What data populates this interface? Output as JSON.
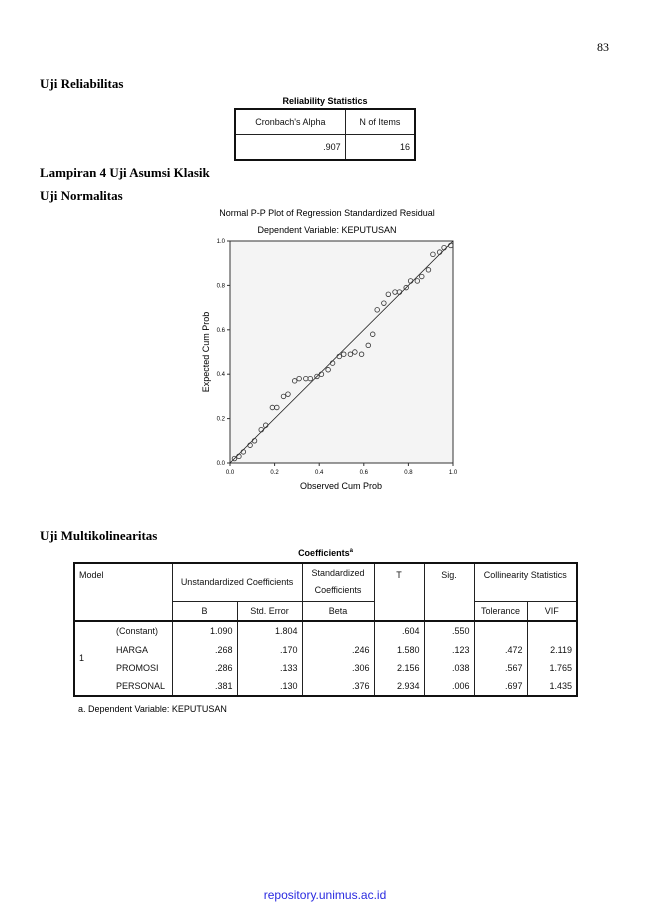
{
  "page_number": "83",
  "reliability": {
    "heading": "Uji Reliabilitas",
    "title": "Reliability Statistics",
    "headers": [
      "Cronbach's Alpha",
      "N of Items"
    ],
    "values": [
      ".907",
      "16"
    ]
  },
  "appendix_heading": "Lampiran 4 Uji Asumsi Klasik",
  "normality": {
    "heading": "Uji Normalitas",
    "chart_data": {
      "type": "scatter",
      "title": "Normal P-P Plot of Regression Standardized Residual",
      "subtitle": "Dependent Variable: KEPUTUSAN",
      "x_label": "Observed Cum Prob",
      "y_label": "Expected Cum Prob",
      "xlim": [
        0,
        1
      ],
      "ylim": [
        0,
        1
      ],
      "xticks": [
        {
          "value": 0,
          "label": "0.0"
        },
        0.2,
        0.4,
        0.6,
        0.8,
        {
          "value": 1,
          "label": "1.0"
        }
      ],
      "yticks": [
        {
          "value": 0,
          "label": "0.0"
        },
        0.2,
        0.4,
        0.6,
        0.8,
        {
          "value": 1,
          "label": "1.0"
        }
      ],
      "color": "#333333",
      "x": [
        0.02,
        0.04,
        0.06,
        0.09,
        0.11,
        0.14,
        0.16,
        0.19,
        0.21,
        0.24,
        0.26,
        0.29,
        0.31,
        0.34,
        0.36,
        0.39,
        0.41,
        0.44,
        0.46,
        0.49,
        0.51,
        0.54,
        0.56,
        0.59,
        0.62,
        0.64,
        0.66,
        0.69,
        0.71,
        0.74,
        0.76,
        0.79,
        0.81,
        0.84,
        0.86,
        0.89,
        0.91,
        0.94,
        0.96,
        0.99
      ],
      "y": [
        0.02,
        0.03,
        0.05,
        0.08,
        0.1,
        0.15,
        0.17,
        0.25,
        0.25,
        0.3,
        0.31,
        0.37,
        0.38,
        0.38,
        0.38,
        0.39,
        0.4,
        0.42,
        0.45,
        0.48,
        0.49,
        0.49,
        0.5,
        0.49,
        0.53,
        0.58,
        0.69,
        0.72,
        0.76,
        0.77,
        0.77,
        0.79,
        0.82,
        0.82,
        0.84,
        0.87,
        0.94,
        0.95,
        0.97,
        0.98
      ]
    }
  },
  "multicollinearity": {
    "heading": "Uji Multikolinearitas",
    "title": "Coefficients",
    "title_superscript": "a",
    "headers": {
      "model": "Model",
      "unstd": "Unstandardized Coefficients",
      "std": "Standardized Coefficients",
      "t": "T",
      "sig": "Sig.",
      "coll": "Collinearity Statistics",
      "b": "B",
      "se": "Std. Error",
      "beta": "Beta",
      "tolerance": "Tolerance",
      "vif": "VIF"
    },
    "model": "1",
    "rows": [
      {
        "name": "(Constant)",
        "b": "1.090",
        "se": "1.804",
        "t": ".604",
        "sig": ".550"
      },
      {
        "name": "HARGA",
        "b": ".268",
        "se": ".170",
        "beta": ".246",
        "t": "1.580",
        "sig": ".123",
        "tolerance": ".472",
        "vif": "2.119"
      },
      {
        "name": "PROMOSI",
        "b": ".286",
        "se": ".133",
        "beta": ".306",
        "t": "2.156",
        "sig": ".038",
        "tolerance": ".567",
        "vif": "1.765"
      },
      {
        "name": "PERSONAL",
        "b": ".381",
        "se": ".130",
        "beta": ".376",
        "t": "2.934",
        "sig": ".006",
        "tolerance": ".697",
        "vif": "1.435"
      }
    ],
    "footnote": "a. Dependent Variable: KEPUTUSAN"
  },
  "footer": "repository.unimus.ac.id"
}
